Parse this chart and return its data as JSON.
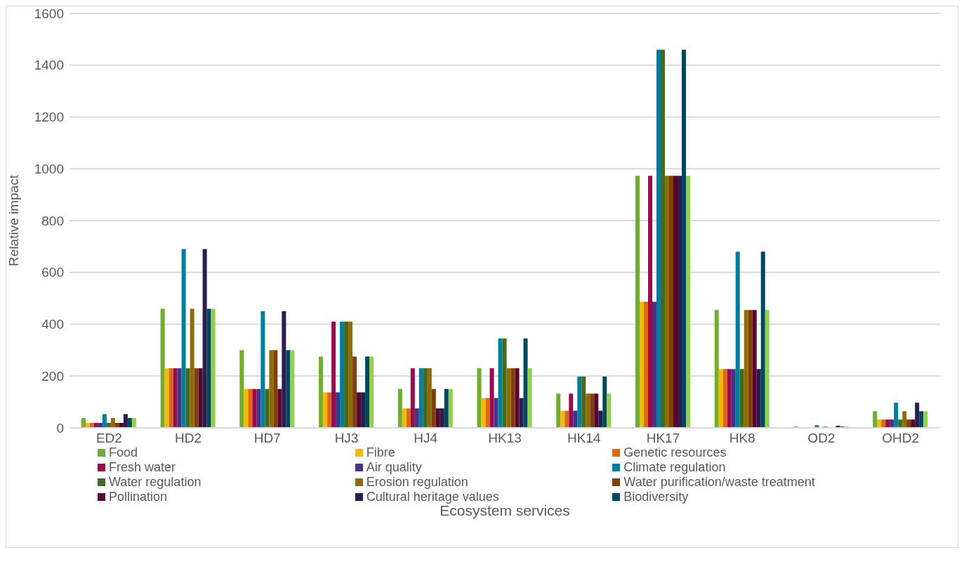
{
  "chart_data": {
    "type": "bar",
    "xlabel": "Ecosystem services",
    "ylabel": "Relative impact",
    "categories": [
      "ED2",
      "HD2",
      "HD7",
      "HJ3",
      "HJ4",
      "HK13",
      "HK14",
      "HK17",
      "HK8",
      "OD2",
      "OHD2"
    ],
    "ylim": [
      0,
      1600
    ],
    "yticks": [
      0,
      200,
      400,
      600,
      800,
      1000,
      1200,
      1400,
      1600
    ],
    "grid": "y",
    "legend": "bottom",
    "series": [
      {
        "name": "Food",
        "color": "#70ad2f",
        "values": [
          38,
          460,
          300,
          275,
          150,
          230,
          132,
          973,
          455,
          5,
          64
        ]
      },
      {
        "name": "Fibre",
        "color": "#f2b90c",
        "values": [
          19,
          230,
          150,
          137,
          75,
          115,
          66,
          487,
          227,
          0,
          32
        ]
      },
      {
        "name": "Genetic resources",
        "color": "#d96b0f",
        "values": [
          19,
          230,
          150,
          137,
          75,
          115,
          66,
          487,
          227,
          0,
          32
        ]
      },
      {
        "name": "Fresh water",
        "color": "#9b0a4f",
        "values": [
          19,
          230,
          150,
          410,
          230,
          230,
          132,
          973,
          227,
          0,
          32
        ]
      },
      {
        "name": "Air quality",
        "color": "#463383",
        "values": [
          19,
          230,
          150,
          137,
          75,
          115,
          66,
          487,
          227,
          0,
          32
        ]
      },
      {
        "name": "Climate regulation",
        "color": "#007ea0",
        "values": [
          53,
          690,
          450,
          410,
          230,
          345,
          198,
          1460,
          680,
          10,
          97
        ]
      },
      {
        "name": "Water regulation",
        "color": "#436a1d",
        "values": [
          19,
          230,
          150,
          410,
          230,
          345,
          198,
          1460,
          227,
          0,
          32
        ]
      },
      {
        "name": "Erosion regulation",
        "color": "#8f6c09",
        "values": [
          38,
          460,
          300,
          410,
          230,
          230,
          132,
          973,
          455,
          5,
          64
        ]
      },
      {
        "name": "Water purification/waste treatment",
        "color": "#7f3f0b",
        "values": [
          19,
          230,
          300,
          275,
          150,
          230,
          132,
          973,
          455,
          0,
          32
        ]
      },
      {
        "name": "Pollination",
        "color": "#5c0430",
        "values": [
          19,
          230,
          150,
          137,
          75,
          230,
          132,
          973,
          455,
          0,
          32
        ]
      },
      {
        "name": "Cultural heritage values",
        "color": "#291e4f",
        "values": [
          53,
          690,
          450,
          137,
          75,
          115,
          66,
          973,
          227,
          8,
          97
        ]
      },
      {
        "name": "Biodiversity",
        "color": "#00475e",
        "values": [
          38,
          460,
          300,
          275,
          150,
          345,
          198,
          1460,
          680,
          5,
          64
        ]
      },
      {
        "color": "#92d050",
        "values": [
          38,
          460,
          300,
          275,
          150,
          230,
          132,
          973,
          455,
          5,
          64
        ]
      }
    ]
  }
}
